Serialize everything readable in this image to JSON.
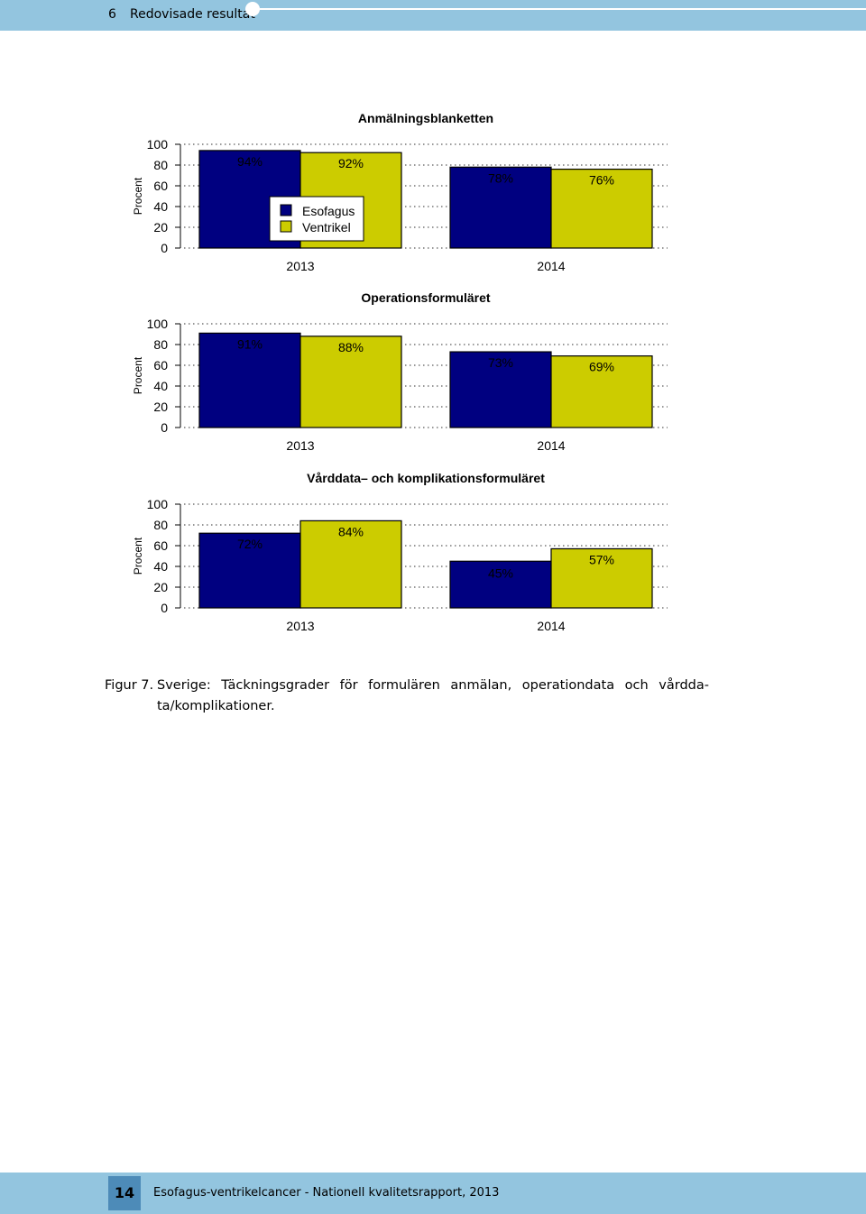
{
  "header": {
    "chapter_number": "6",
    "chapter_title": "Redovisade resultat"
  },
  "colors": {
    "esofagus": "#000080",
    "ventrikel": "#cccc00",
    "band": "#93c5df",
    "page_box": "#4d8bb8"
  },
  "chart_data": [
    {
      "type": "bar",
      "title": "Anmälningsblanketten",
      "ylabel": "Procent",
      "ylim": [
        0,
        100
      ],
      "yticks": [
        "0",
        "20",
        "40",
        "60",
        "80",
        "100"
      ],
      "categories": [
        "2013",
        "2014"
      ],
      "series": [
        {
          "name": "Esofagus",
          "values": [
            94,
            78
          ],
          "labels": [
            "94%",
            "78%"
          ]
        },
        {
          "name": "Ventrikel",
          "values": [
            92,
            76
          ],
          "labels": [
            "92%",
            "76%"
          ]
        }
      ],
      "legend": "inside-top-center",
      "grid": true
    },
    {
      "type": "bar",
      "title": "Operationsformuläret",
      "ylabel": "Procent",
      "ylim": [
        0,
        100
      ],
      "yticks": [
        "0",
        "20",
        "40",
        "60",
        "80",
        "100"
      ],
      "categories": [
        "2013",
        "2014"
      ],
      "series": [
        {
          "values": [
            91,
            73
          ],
          "labels": [
            "91%",
            "73%"
          ]
        },
        {
          "values": [
            88,
            69
          ],
          "labels": [
            "88%",
            "69%"
          ]
        }
      ],
      "grid": true
    },
    {
      "type": "bar",
      "title": "Vårddata– och komplikationsformuläret",
      "ylabel": "Procent",
      "ylim": [
        0,
        100
      ],
      "yticks": [
        "0",
        "20",
        "40",
        "60",
        "80",
        "100"
      ],
      "categories": [
        "2013",
        "2014"
      ],
      "series": [
        {
          "values": [
            72,
            45
          ],
          "labels": [
            "72%",
            "45%"
          ]
        },
        {
          "values": [
            84,
            57
          ],
          "labels": [
            "84%",
            "57%"
          ]
        }
      ],
      "grid": true
    }
  ],
  "caption": {
    "label": "Figur 7.",
    "text": "Sverige: Täckningsgrader för formulären anmälan, operationdata och vårdda-",
    "text2": "ta/komplikationer."
  },
  "footer": {
    "page_number": "14",
    "text": "Esofagus-ventrikelcancer - Nationell kvalitetsrapport, 2013"
  }
}
